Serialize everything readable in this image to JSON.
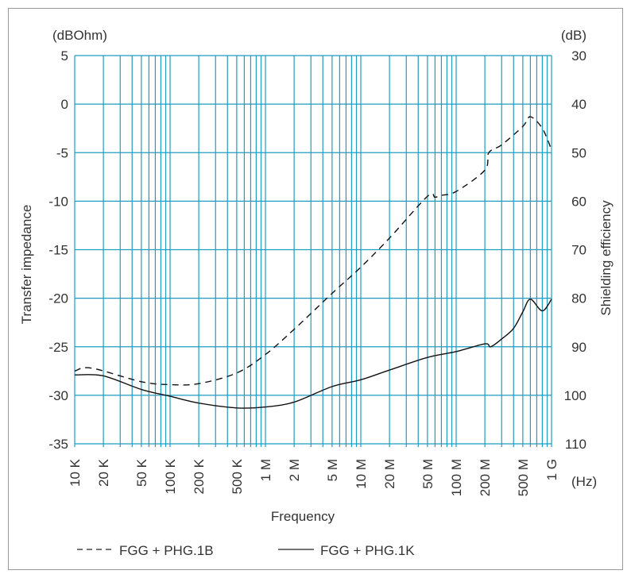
{
  "chart_data": {
    "type": "line",
    "title": "",
    "xlabel": "Frequency",
    "xunit": "(Hz)",
    "ylabel_left": "Transfer impedance",
    "yunit_left": "(dBOhm)",
    "ylabel_right": "Shielding efficiency",
    "yunit_right": "(dB)",
    "xscale": "log",
    "xlim": [
      10000,
      1000000000
    ],
    "ylim_left": [
      -35,
      5
    ],
    "ylim_right": [
      110,
      30
    ],
    "grid": true,
    "grid_color": "#1f9cc0",
    "x_ticks": [
      {
        "value": 10000,
        "label": "10 K"
      },
      {
        "value": 20000,
        "label": "20 K"
      },
      {
        "value": 50000,
        "label": "50 K"
      },
      {
        "value": 100000,
        "label": "100 K"
      },
      {
        "value": 200000,
        "label": "200 K"
      },
      {
        "value": 500000,
        "label": "500 K"
      },
      {
        "value": 1000000,
        "label": "1 M"
      },
      {
        "value": 2000000,
        "label": "2 M"
      },
      {
        "value": 5000000,
        "label": "5 M"
      },
      {
        "value": 10000000,
        "label": "10 M"
      },
      {
        "value": 20000000,
        "label": "20 M"
      },
      {
        "value": 50000000,
        "label": "50 M"
      },
      {
        "value": 100000000,
        "label": "100 M"
      },
      {
        "value": 200000000,
        "label": "200 M"
      },
      {
        "value": 500000000,
        "label": "500 M"
      },
      {
        "value": 1000000000,
        "label": "1 G"
      }
    ],
    "y_ticks_left": [
      "5",
      "0",
      "-5",
      "-10",
      "-15",
      "-20",
      "-25",
      "-30",
      "-35"
    ],
    "y_ticks_right": [
      "30",
      "40",
      "50",
      "60",
      "70",
      "80",
      "90",
      "100",
      "110"
    ],
    "legend_position": "bottom",
    "series": [
      {
        "name": "FGG + PHG.1B",
        "style": "dashed",
        "x": [
          10000,
          15000,
          50000,
          100000,
          200000,
          500000,
          1000000,
          2000000,
          5000000,
          10000000,
          20000000,
          50000000,
          60000000,
          70000000,
          100000000,
          200000000,
          220000000,
          300000000,
          500000000,
          600000000,
          800000000,
          1000000000
        ],
        "y": [
          -27.5,
          -27.2,
          -28.6,
          -28.9,
          -28.8,
          -27.7,
          -25.8,
          -23.2,
          -19.5,
          -16.8,
          -13.8,
          -9.5,
          -9.6,
          -9.4,
          -9.0,
          -6.8,
          -5.0,
          -4.2,
          -2.3,
          -1.3,
          -2.5,
          -4.7
        ]
      },
      {
        "name": "FGG + PHG.1K",
        "style": "solid",
        "x": [
          10000,
          20000,
          50000,
          100000,
          200000,
          500000,
          1000000,
          2000000,
          5000000,
          10000000,
          20000000,
          50000000,
          100000000,
          200000000,
          230000000,
          300000000,
          400000000,
          500000000,
          600000000,
          800000000,
          1000000000
        ],
        "y": [
          -27.9,
          -28.0,
          -29.4,
          -30.1,
          -30.8,
          -31.3,
          -31.2,
          -30.7,
          -29.1,
          -28.4,
          -27.4,
          -26.1,
          -25.5,
          -24.7,
          -25.0,
          -24.2,
          -23.1,
          -21.4,
          -20.1,
          -21.3,
          -20.1
        ]
      }
    ]
  }
}
